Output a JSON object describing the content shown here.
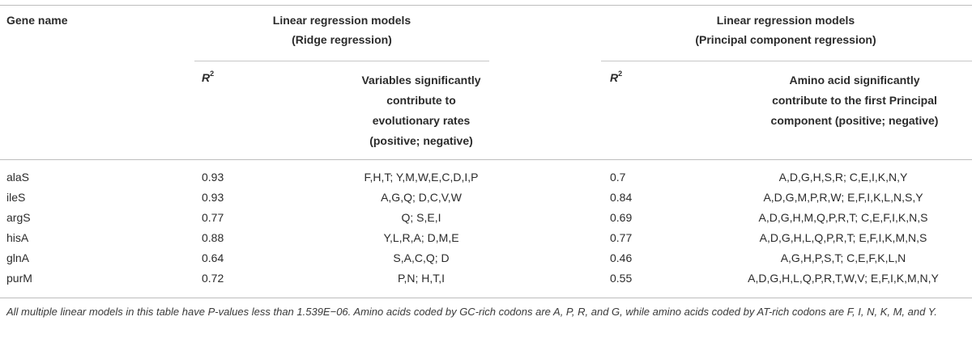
{
  "header": {
    "gene_name": "Gene name",
    "ridge_title_line1": "Linear regression models",
    "ridge_title_line2": "(Ridge regression)",
    "pcr_title_line1": "Linear regression models",
    "pcr_title_line2": "(Principal component regression)",
    "r2_label": "R",
    "r2_sup": "2",
    "ridge_vars_line1": "Variables significantly",
    "ridge_vars_line2": "contribute to",
    "ridge_vars_line3": "evolutionary rates",
    "ridge_vars_line4": "(positive; negative)",
    "pcr_vars_line1": "Amino acid significantly",
    "pcr_vars_line2": "contribute to the first Principal",
    "pcr_vars_line3": "component (positive; negative)"
  },
  "rows": [
    {
      "gene": "alaS",
      "ridge_r2": "0.93",
      "ridge_vars": "F,H,T; Y,M,W,E,C,D,I,P",
      "pcr_r2": "0.7",
      "pcr_vars": "A,D,G,H,S,R; C,E,I,K,N,Y"
    },
    {
      "gene": "ileS",
      "ridge_r2": "0.93",
      "ridge_vars": "A,G,Q; D,C,V,W",
      "pcr_r2": "0.84",
      "pcr_vars": "A,D,G,M,P,R,W; E,F,I,K,L,N,S,Y"
    },
    {
      "gene": "argS",
      "ridge_r2": "0.77",
      "ridge_vars": "Q; S,E,I",
      "pcr_r2": "0.69",
      "pcr_vars": "A,D,G,H,M,Q,P,R,T; C,E,F,I,K,N,S"
    },
    {
      "gene": "hisA",
      "ridge_r2": "0.88",
      "ridge_vars": "Y,L,R,A; D,M,E",
      "pcr_r2": "0.77",
      "pcr_vars": "A,D,G,H,L,Q,P,R,T; E,F,I,K,M,N,S"
    },
    {
      "gene": "glnA",
      "ridge_r2": "0.64",
      "ridge_vars": "S,A,C,Q; D",
      "pcr_r2": "0.46",
      "pcr_vars": "A,G,H,P,S,T; C,E,F,K,L,N"
    },
    {
      "gene": "purM",
      "ridge_r2": "0.72",
      "ridge_vars": "P,N; H,T,I",
      "pcr_r2": "0.55",
      "pcr_vars": "A,D,G,H,L,Q,P,R,T,W,V; E,F,I,K,M,N,Y"
    }
  ],
  "footnote": "All multiple linear models in this table have P-values less than 1.539E−06. Amino acids coded by GC-rich codons are A, P, R, and G, while amino acids coded by AT-rich codons are F, I, N, K, M, and Y."
}
